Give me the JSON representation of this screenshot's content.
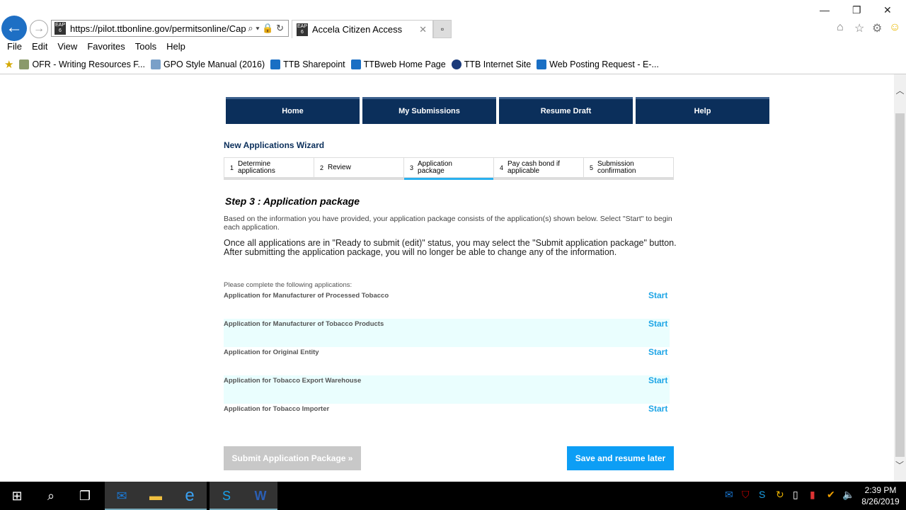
{
  "browser": {
    "url": "https://pilot.ttbonline.gov/permitsonline/Cap",
    "tab_title": "Accela Citizen Access",
    "menu": [
      "File",
      "Edit",
      "View",
      "Favorites",
      "Tools",
      "Help"
    ],
    "favorites": [
      {
        "label": "OFR - Writing Resources F...",
        "color": "#8a9a6a"
      },
      {
        "label": "GPO Style Manual (2016)",
        "color": "#7aa0c8"
      },
      {
        "label": "TTB Sharepoint",
        "color": "#1a6fc4"
      },
      {
        "label": "TTBweb Home Page",
        "color": "#1a6fc4"
      },
      {
        "label": "TTB Internet Site",
        "color": "#1a3a7a"
      },
      {
        "label": "Web Posting Request - E-...",
        "color": "#1a6fc4"
      }
    ]
  },
  "nav": [
    "Home",
    "My Submissions",
    "Resume Draft",
    "Help"
  ],
  "wizard": {
    "title": "New Applications Wizard",
    "steps": [
      {
        "n": "1",
        "label": "Determine applications"
      },
      {
        "n": "2",
        "label": "Review"
      },
      {
        "n": "3",
        "label": "Application package",
        "active": true
      },
      {
        "n": "4",
        "label": "Pay cash bond if applicable"
      },
      {
        "n": "5",
        "label": "Submission confirmation"
      }
    ]
  },
  "content": {
    "heading": "Step 3 : Application package",
    "para1": "Based on the information you have provided, your application package consists of the application(s) shown below. Select \"Start\" to begin each application.",
    "para2": "Once all applications are in \"Ready to submit (edit)\" status, you may select the \"Submit application package\" button.  After submitting the application package, you will no longer be able to change any of the information.",
    "list_lead": "Please complete the following applications:",
    "applications": [
      {
        "name": "Application for Manufacturer of Processed Tobacco",
        "action": "Start"
      },
      {
        "name": "Application for Manufacturer of Tobacco Products",
        "action": "Start"
      },
      {
        "name": "Application for Original Entity",
        "action": "Start"
      },
      {
        "name": "Application for Tobacco Export Warehouse",
        "action": "Start"
      },
      {
        "name": "Application for Tobacco Importer",
        "action": "Start"
      }
    ],
    "submit_label": "Submit Application Package »",
    "save_label": "Save and resume later"
  },
  "taskbar": {
    "time": "2:39 PM",
    "date": "8/26/2019"
  },
  "colors": {
    "nav": "#0b2f5b",
    "accent": "#1ea5e6",
    "save": "#0d9ef5",
    "alt_row": "#eafefe"
  }
}
